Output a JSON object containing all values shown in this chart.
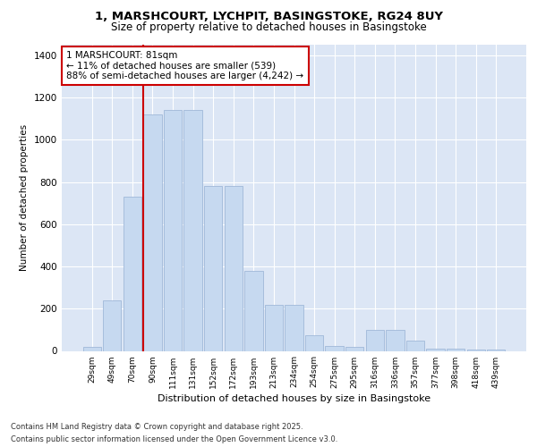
{
  "title_line1": "1, MARSHCOURT, LYCHPIT, BASINGSTOKE, RG24 8UY",
  "title_line2": "Size of property relative to detached houses in Basingstoke",
  "xlabel": "Distribution of detached houses by size in Basingstoke",
  "ylabel": "Number of detached properties",
  "categories": [
    "29sqm",
    "49sqm",
    "70sqm",
    "90sqm",
    "111sqm",
    "131sqm",
    "152sqm",
    "172sqm",
    "193sqm",
    "213sqm",
    "234sqm",
    "254sqm",
    "275sqm",
    "295sqm",
    "316sqm",
    "336sqm",
    "357sqm",
    "377sqm",
    "398sqm",
    "418sqm",
    "439sqm"
  ],
  "values": [
    20,
    240,
    730,
    1120,
    1140,
    1140,
    780,
    780,
    380,
    220,
    220,
    75,
    25,
    20,
    100,
    100,
    50,
    10,
    10,
    5,
    5
  ],
  "bar_color": "#c6d9f0",
  "bar_edge_color": "#a0b8d8",
  "vline_color": "#cc0000",
  "annotation_text": "1 MARSHCOURT: 81sqm\n← 11% of detached houses are smaller (539)\n88% of semi-detached houses are larger (4,242) →",
  "annotation_box_facecolor": "#ffffff",
  "annotation_box_edgecolor": "#cc0000",
  "ylim": [
    0,
    1450
  ],
  "yticks": [
    0,
    200,
    400,
    600,
    800,
    1000,
    1200,
    1400
  ],
  "plot_bg_color": "#dce6f5",
  "footer_line1": "Contains HM Land Registry data © Crown copyright and database right 2025.",
  "footer_line2": "Contains public sector information licensed under the Open Government Licence v3.0."
}
